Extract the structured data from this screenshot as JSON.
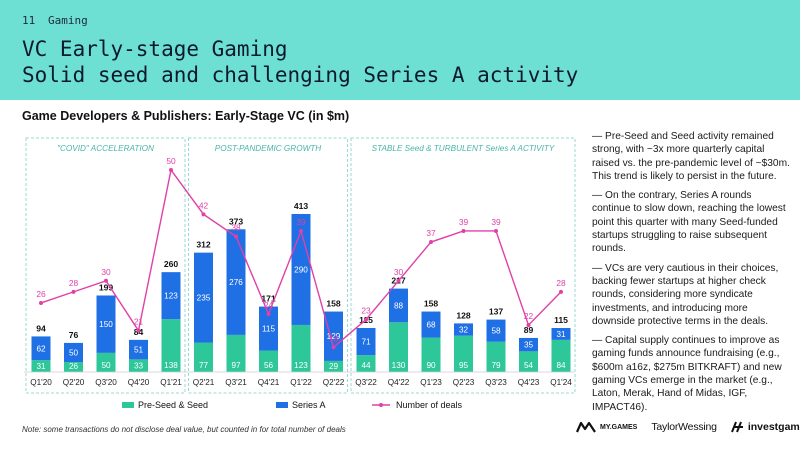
{
  "header": {
    "page_number": "11",
    "section": "Gaming",
    "title_line1": "VC Early-stage Gaming",
    "title_line2": "Solid seed and challenging Series A activity"
  },
  "chart_title": "Game Developers & Publishers: Early-Stage VC (in $m)",
  "colors": {
    "header_bg": "#6ee0d3",
    "seed": "#2ec79a",
    "seriesA": "#1f6fe5",
    "deals": "#e040a8",
    "region_border": "#9ad9d4",
    "region_label": "#49b5ab"
  },
  "chart_data": {
    "type": "bar",
    "stacked": true,
    "categories": [
      "Q1'20",
      "Q2'20",
      "Q3'20",
      "Q4'20",
      "Q1'21",
      "Q2'21",
      "Q3'21",
      "Q4'21",
      "Q1'22",
      "Q2'22",
      "Q3'22",
      "Q4'22",
      "Q1'23",
      "Q2'23",
      "Q3'23",
      "Q4'23",
      "Q1'24"
    ],
    "series": [
      {
        "name": "Pre-Seed & Seed",
        "values": [
          31,
          26,
          50,
          33,
          138,
          77,
          97,
          56,
          123,
          29,
          44,
          130,
          90,
          95,
          79,
          54,
          84
        ]
      },
      {
        "name": "Series A",
        "values": [
          62,
          50,
          150,
          51,
          123,
          235,
          276,
          115,
          290,
          129,
          71,
          88,
          68,
          32,
          58,
          35,
          31
        ]
      }
    ],
    "totals": [
      94,
      76,
      199,
      84,
      260,
      312,
      373,
      171,
      413,
      158,
      115,
      217,
      158,
      128,
      137,
      89,
      115
    ],
    "line_series": {
      "name": "Number of deals",
      "values": [
        26,
        28,
        30,
        21,
        50,
        42,
        38,
        24,
        39,
        18,
        23,
        30,
        37,
        39,
        39,
        22,
        28
      ]
    },
    "ylim": [
      0,
      440
    ],
    "deals_ylim": [
      0,
      60
    ],
    "regions": [
      {
        "label": "\"COVID\" ACCELERATION",
        "start": 0,
        "end": 4
      },
      {
        "label": "POST-PANDEMIC GROWTH",
        "start": 5,
        "end": 9
      },
      {
        "label": "STABLE Seed & TURBULENT Series A ACTIVITY",
        "start": 10,
        "end": 16
      }
    ],
    "legend": [
      "Pre-Seed & Seed",
      "Series A",
      "Number of deals"
    ],
    "legend_position": "bottom"
  },
  "notes": [
    "— Pre-Seed and Seed activity remained strong, with ~3x more quarterly capital raised vs. the pre-pandemic level of ~$30m. This trend is likely to persist in the future.",
    "— On the contrary, Series A rounds continue to slow down, reaching the lowest point this quarter with many Seed-funded startups struggling to raise subsequent rounds.",
    "— VCs are very cautious in their choices, backing fewer startups at higher check rounds, considering more syndicate investments, and introducing more downside protective terms in the deals.",
    "— Capital supply continues to improve as gaming funds announce fundraising (e.g., $600m a16z, $275m BITKRAFT) and new gaming VCs emerge in the market (e.g., Laton, Merak, Hand of Midas, IGF, IMPACT46)."
  ],
  "footnote": "Note: some transactions do not disclose deal value, but counted in for total number of deals",
  "logos": {
    "mygames": "MY.GAMES",
    "taylorwessing": "TaylorWessing",
    "investgame": "investgame"
  }
}
